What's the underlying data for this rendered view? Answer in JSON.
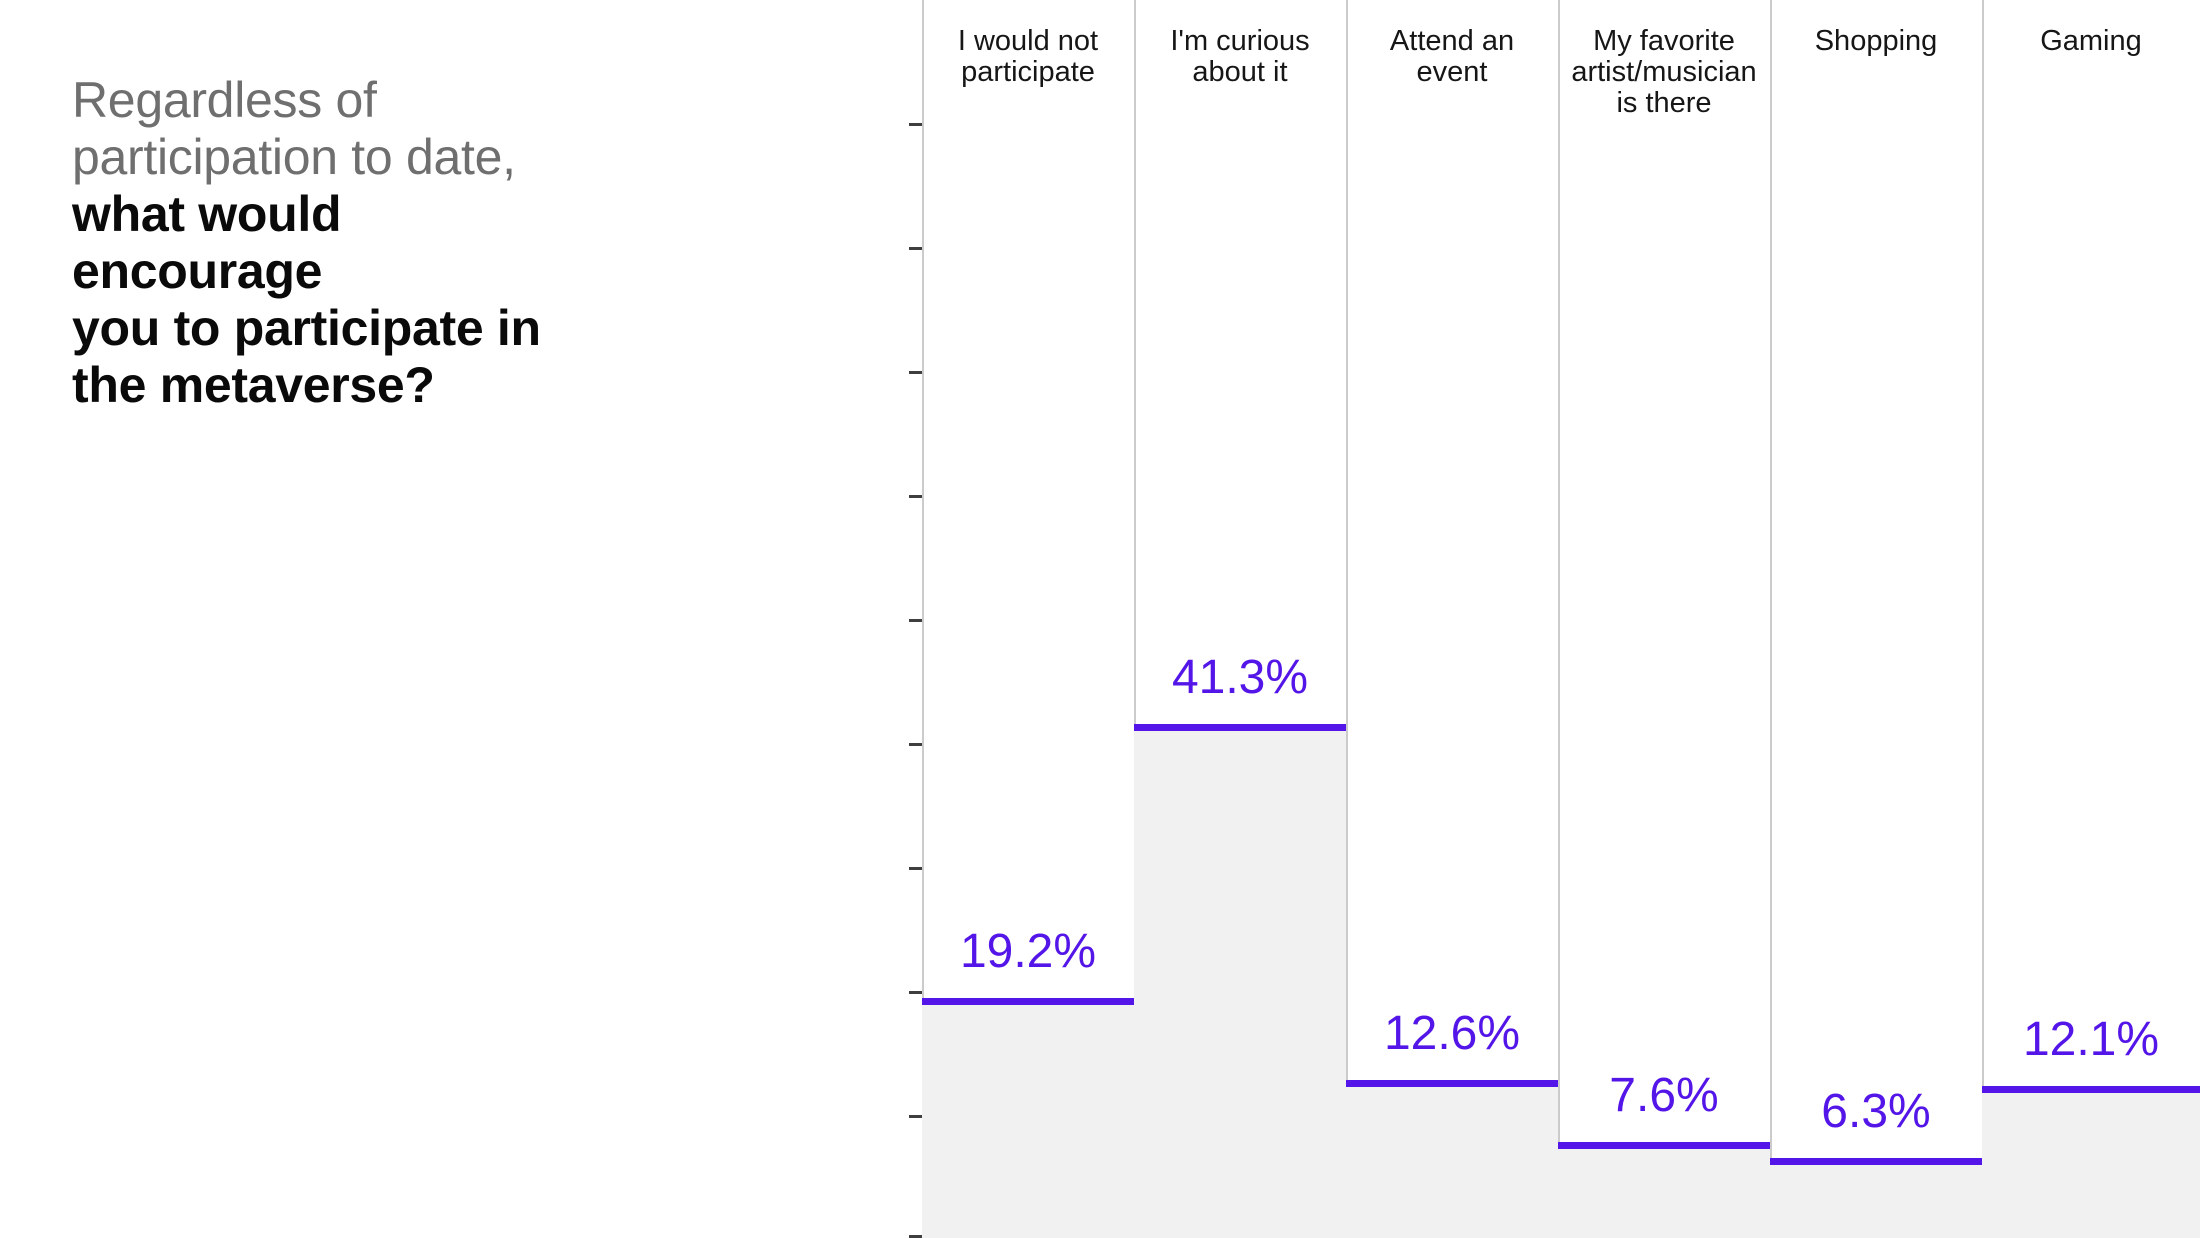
{
  "slide": {
    "title_muted": "Regardless of\nparticipation to date,",
    "title_strong": "what would encourage\nyou to participate in\nthe metaverse?"
  },
  "colors": {
    "accent_purple": "#5315e8",
    "bar_fill_gray": "#f1f1f2",
    "gridline_gray": "#cbcbcb",
    "tick_dark": "#3e3e3e",
    "title_muted_gray": "#6f6f6f",
    "title_black": "#0a0a0a"
  },
  "chart": {
    "columns": [
      {
        "category": "I would not\nparticipate",
        "value": 19.2,
        "value_label": "19.2%"
      },
      {
        "category": "I'm curious\nabout it",
        "value": 41.3,
        "value_label": "41.3%"
      },
      {
        "category": "Attend an\nevent",
        "value": 12.6,
        "value_label": "12.6%"
      },
      {
        "category": "My favorite\nartist/musician\nis there",
        "value": 7.6,
        "value_label": "7.6%"
      },
      {
        "category": "Shopping",
        "value": 6.3,
        "value_label": "6.3%"
      },
      {
        "category": "Gaming",
        "value": 12.1,
        "value_label": "12.1%"
      }
    ]
  },
  "chart_data": {
    "type": "bar",
    "title": "Regardless of participation to date, what would encourage you to participate in the metaverse?",
    "categories": [
      "I would not participate",
      "I'm curious about it",
      "Attend an event",
      "My favorite artist/musician is there",
      "Shopping",
      "Gaming"
    ],
    "values": [
      19.2,
      41.3,
      12.6,
      7.6,
      6.3,
      12.1
    ],
    "value_labels": [
      "19.2%",
      "41.3%",
      "12.6%",
      "7.6%",
      "6.3%",
      "12.1%"
    ],
    "ylim": [
      0,
      100
    ],
    "ytick_interval": 10,
    "grid": "vertical-column-separators",
    "legend": "none",
    "category_label_position": "top",
    "bar_style": "top-edge-line-with-light-shaded-area"
  }
}
